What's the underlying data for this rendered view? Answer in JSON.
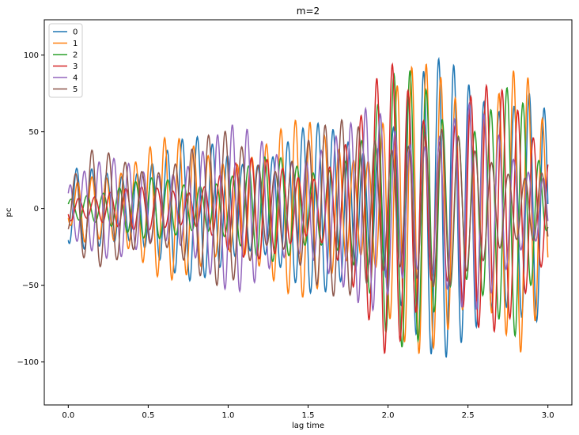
{
  "chart_data": {
    "type": "line",
    "title": "m=2",
    "xlabel": "lag time",
    "ylabel": "pc",
    "xlim": [
      -0.15,
      3.15
    ],
    "ylim": [
      -128,
      123
    ],
    "xticks": [
      0.0,
      0.5,
      1.0,
      1.5,
      2.0,
      2.5,
      3.0
    ],
    "xtick_labels": [
      "0.0",
      "0.5",
      "1.0",
      "1.5",
      "2.0",
      "2.5",
      "3.0"
    ],
    "yticks": [
      -100,
      -50,
      0,
      50,
      100
    ],
    "ytick_labels": [
      "−100",
      "−50",
      "0",
      "50",
      "100"
    ],
    "grid": false,
    "legend_position": "top-left",
    "x_range": [
      0.0,
      3.0
    ],
    "series": [
      {
        "name": "0",
        "color": "#1f77b4",
        "keypoints": [
          [
            0.0,
            -22
          ],
          [
            0.03,
            -26
          ],
          [
            0.5,
            42
          ],
          [
            0.75,
            -47
          ],
          [
            1.0,
            48
          ],
          [
            1.25,
            -50
          ],
          [
            1.5,
            55
          ],
          [
            1.75,
            -58
          ],
          [
            1.85,
            60
          ],
          [
            2.1,
            -90
          ],
          [
            2.5,
            104
          ],
          [
            2.55,
            112
          ],
          [
            2.73,
            -113
          ],
          [
            2.9,
            95
          ],
          [
            3.0,
            -63
          ]
        ]
      },
      {
        "name": "1",
        "color": "#ff7f0e",
        "keypoints": [
          [
            0.0,
            -10
          ],
          [
            0.1,
            30
          ],
          [
            0.55,
            47
          ],
          [
            0.75,
            -46
          ],
          [
            1.0,
            50
          ],
          [
            1.25,
            -52
          ],
          [
            1.5,
            60
          ],
          [
            1.7,
            -60
          ],
          [
            1.9,
            50
          ],
          [
            2.0,
            88
          ],
          [
            2.5,
            -105
          ],
          [
            2.65,
            -113
          ],
          [
            2.7,
            113
          ],
          [
            2.82,
            -108
          ],
          [
            3.0,
            47
          ]
        ]
      },
      {
        "name": "2",
        "color": "#2ca02c",
        "keypoints": [
          [
            0.0,
            8
          ],
          [
            0.1,
            15
          ],
          [
            0.5,
            20
          ],
          [
            0.75,
            20
          ],
          [
            1.0,
            32
          ],
          [
            1.25,
            35
          ],
          [
            1.5,
            30
          ],
          [
            1.7,
            50
          ],
          [
            1.85,
            63
          ],
          [
            2.0,
            86
          ],
          [
            2.2,
            -97
          ],
          [
            2.3,
            93
          ],
          [
            2.5,
            -80
          ],
          [
            2.8,
            -84
          ],
          [
            3.0,
            -15
          ]
        ]
      },
      {
        "name": "3",
        "color": "#d62728",
        "keypoints": [
          [
            0.0,
            -15
          ],
          [
            0.1,
            10
          ],
          [
            0.5,
            15
          ],
          [
            0.75,
            18
          ],
          [
            1.0,
            33
          ],
          [
            1.25,
            -33
          ],
          [
            1.5,
            30
          ],
          [
            1.85,
            68
          ],
          [
            2.0,
            100
          ],
          [
            2.2,
            -95
          ],
          [
            2.3,
            75
          ],
          [
            2.5,
            -95
          ],
          [
            2.8,
            -70
          ],
          [
            3.0,
            -52
          ]
        ]
      },
      {
        "name": "4",
        "color": "#9467bd",
        "keypoints": [
          [
            0.0,
            18
          ],
          [
            0.02,
            29
          ],
          [
            0.25,
            -33
          ],
          [
            0.5,
            30
          ],
          [
            0.8,
            48
          ],
          [
            1.0,
            -55
          ],
          [
            1.25,
            -52
          ],
          [
            1.5,
            53
          ],
          [
            1.75,
            -55
          ],
          [
            1.9,
            70
          ],
          [
            2.1,
            -70
          ],
          [
            2.5,
            -72
          ],
          [
            2.8,
            40
          ],
          [
            3.0,
            35
          ]
        ]
      },
      {
        "name": "5",
        "color": "#8c564b",
        "keypoints": [
          [
            0.0,
            18
          ],
          [
            0.13,
            38
          ],
          [
            0.5,
            -40
          ],
          [
            0.75,
            45
          ],
          [
            1.0,
            -52
          ],
          [
            1.25,
            -40
          ],
          [
            1.5,
            57
          ],
          [
            1.75,
            -58
          ],
          [
            1.9,
            60
          ],
          [
            2.2,
            -73
          ],
          [
            2.5,
            40
          ],
          [
            2.8,
            -35
          ],
          [
            3.0,
            36
          ]
        ]
      }
    ]
  }
}
